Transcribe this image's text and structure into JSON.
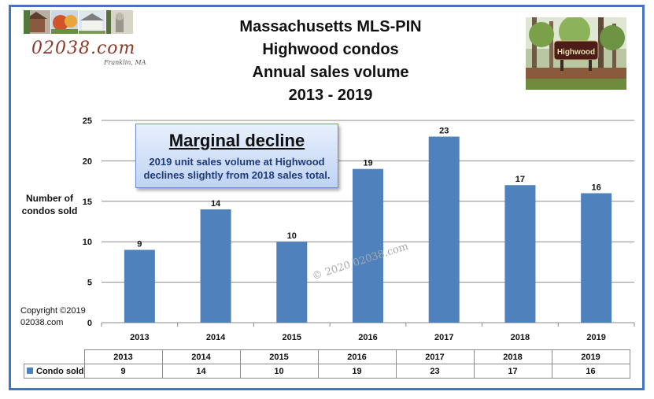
{
  "logo": {
    "site_text": "02038.com",
    "town_text": "Franklin, MA"
  },
  "title_lines": [
    "Massachusetts MLS-PIN",
    "Highwood condos",
    "Annual sales volume",
    "2013 - 2019"
  ],
  "photo": {
    "sign_text": "Highwood"
  },
  "annotation": {
    "heading": "Marginal decline",
    "line1": "2019 unit sales volume at Highwood",
    "line2": "declines slightly from 2018 sales total."
  },
  "y_axis_label": {
    "line1": "Number of",
    "line2": "condos sold"
  },
  "copyright": {
    "line1": "Copyright ©2019",
    "line2": "02038.com"
  },
  "watermark": "© 2020 02038.com",
  "colors": {
    "bar": "#4f81bd",
    "frame": "#4472c4"
  },
  "chart_data": {
    "type": "bar",
    "categories": [
      "2013",
      "2014",
      "2015",
      "2016",
      "2017",
      "2018",
      "2019"
    ],
    "series": [
      {
        "name": "Condo sold",
        "values": [
          9,
          14,
          10,
          19,
          23,
          17,
          16
        ]
      }
    ],
    "title": "Massachusetts MLS-PIN Highwood condos Annual sales volume 2013 - 2019",
    "ylabel": "Number of condos sold",
    "ylim": [
      0,
      25
    ],
    "yticks": [
      0,
      5,
      10,
      15,
      20,
      25
    ],
    "grid": true,
    "data_labels": true,
    "data_table": true
  }
}
